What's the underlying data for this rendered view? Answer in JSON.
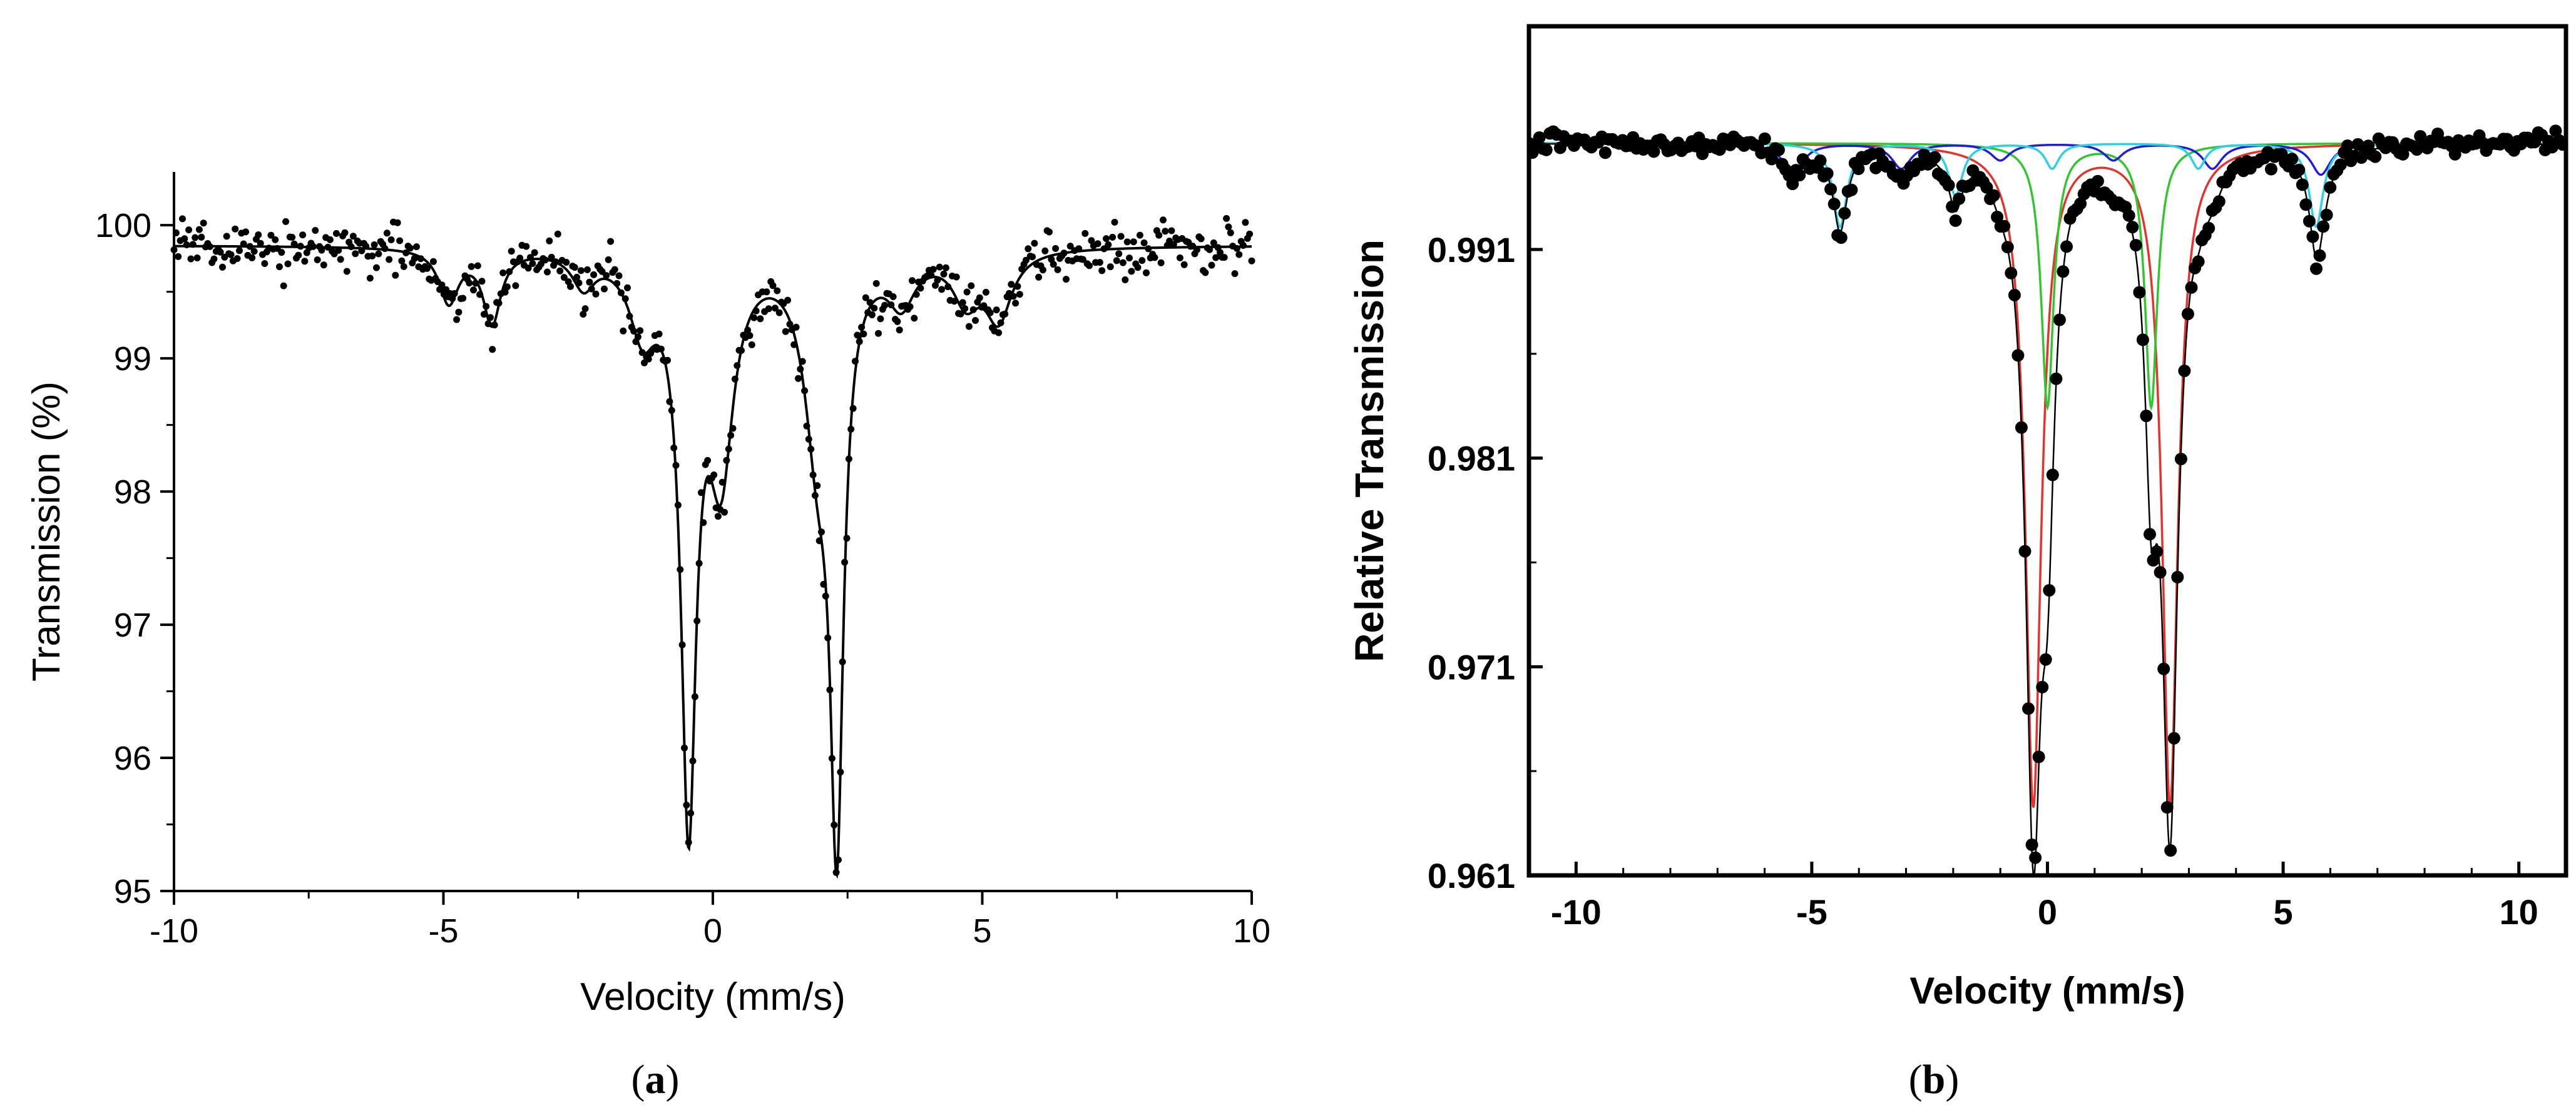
{
  "chart_data": [
    {
      "panel": "a",
      "type": "scatter",
      "xlabel": "Velocity (mm/s)",
      "ylabel": "Transmission (%)",
      "xlim": [
        -10,
        10
      ],
      "ylim": [
        95,
        100.4
      ],
      "xticks": [
        -10,
        -5,
        0,
        5,
        10
      ],
      "xtick_labels": [
        "-10",
        "-5",
        "0",
        "5",
        "10"
      ],
      "yticks": [
        95,
        96,
        97,
        98,
        99,
        100
      ],
      "ytick_labels": [
        "95",
        "96",
        "97",
        "98",
        "99",
        "100"
      ],
      "frame": "left-bottom",
      "grid": false,
      "legend": "none",
      "series": [
        {
          "kind": "fit",
          "color": "#000000",
          "baseline": 99.85,
          "peaks": [
            {
              "center": -0.45,
              "depth": 4.15,
              "hwhm": 0.17
            },
            {
              "center": 0.15,
              "depth": 1.55,
              "hwhm": 0.28
            },
            {
              "center": 2.3,
              "depth": 4.1,
              "hwhm": 0.15
            },
            {
              "center": 1.95,
              "depth": 1.3,
              "hwhm": 0.3
            },
            {
              "center": -4.9,
              "depth": 0.4,
              "hwhm": 0.22
            },
            {
              "center": -4.1,
              "depth": 0.55,
              "hwhm": 0.2
            },
            {
              "center": -2.4,
              "depth": 0.25,
              "hwhm": 0.25
            },
            {
              "center": -1.3,
              "depth": 0.55,
              "hwhm": 0.3
            },
            {
              "center": 4.7,
              "depth": 0.35,
              "hwhm": 0.3
            },
            {
              "center": 5.3,
              "depth": 0.5,
              "hwhm": 0.3
            },
            {
              "center": 3.5,
              "depth": 0.35,
              "hwhm": 0.3
            }
          ]
        },
        {
          "kind": "points",
          "color": "#000000",
          "x_range": [
            -10,
            10
          ],
          "n_points": 512,
          "scatter": 0.09,
          "follows": "fit"
        }
      ]
    },
    {
      "panel": "b",
      "type": "scatter",
      "xlabel": "Velocity (mm/s)",
      "ylabel": "Relative Transmission",
      "xlim": [
        -11,
        11
      ],
      "ylim": [
        0.961,
        1.0017
      ],
      "xticks": [
        -10,
        -5,
        0,
        5,
        10
      ],
      "xtick_labels": [
        "-10",
        "-5",
        "0",
        "5",
        "10"
      ],
      "yticks": [
        0.961,
        0.971,
        0.981,
        0.991
      ],
      "ytick_labels": [
        "0.961",
        "0.971",
        "0.981",
        "0.991"
      ],
      "frame": "box",
      "grid": false,
      "legend": "none",
      "baseline": 0.9961,
      "series": [
        {
          "kind": "component",
          "color": "#e8312a",
          "peaks": [
            {
              "center": -0.3,
              "depth": 0.0317,
              "hwhm": 0.2
            },
            {
              "center": 2.6,
              "depth": 0.0317,
              "hwhm": 0.2
            }
          ]
        },
        {
          "kind": "component",
          "color": "#2ec82e",
          "peaks": [
            {
              "center": 0.0,
              "depth": 0.0126,
              "hwhm": 0.16
            },
            {
              "center": 2.2,
              "depth": 0.0126,
              "hwhm": 0.16
            }
          ]
        },
        {
          "kind": "component",
          "color": "#1d1ddb",
          "peaks": [
            {
              "center": -5.4,
              "depth": 0.0015,
              "hwhm": 0.25
            },
            {
              "center": -3.1,
              "depth": 0.0012,
              "hwhm": 0.25
            },
            {
              "center": -1.0,
              "depth": 0.0008,
              "hwhm": 0.25
            },
            {
              "center": 1.4,
              "depth": 0.0008,
              "hwhm": 0.25
            },
            {
              "center": 3.5,
              "depth": 0.0012,
              "hwhm": 0.25
            },
            {
              "center": 5.8,
              "depth": 0.0015,
              "hwhm": 0.25
            }
          ]
        },
        {
          "kind": "component",
          "color": "#2ad0e6",
          "peaks": [
            {
              "center": -4.4,
              "depth": 0.004,
              "hwhm": 0.18
            },
            {
              "center": -1.95,
              "depth": 0.0025,
              "hwhm": 0.18
            },
            {
              "center": 0.1,
              "depth": 0.0012,
              "hwhm": 0.18
            },
            {
              "center": 3.2,
              "depth": 0.0012,
              "hwhm": 0.18
            },
            {
              "center": 5.7,
              "depth": 0.004,
              "hwhm": 0.18
            }
          ]
        },
        {
          "kind": "fit",
          "color": "#000000",
          "sum_of": "components"
        },
        {
          "kind": "points",
          "color": "#000000",
          "x_range": [
            -11,
            11
          ],
          "n_points": 300,
          "scatter": 0.00025,
          "follows": "fit"
        }
      ]
    }
  ],
  "panels": {
    "a": {
      "label": "a"
    },
    "b": {
      "label": "b"
    }
  }
}
